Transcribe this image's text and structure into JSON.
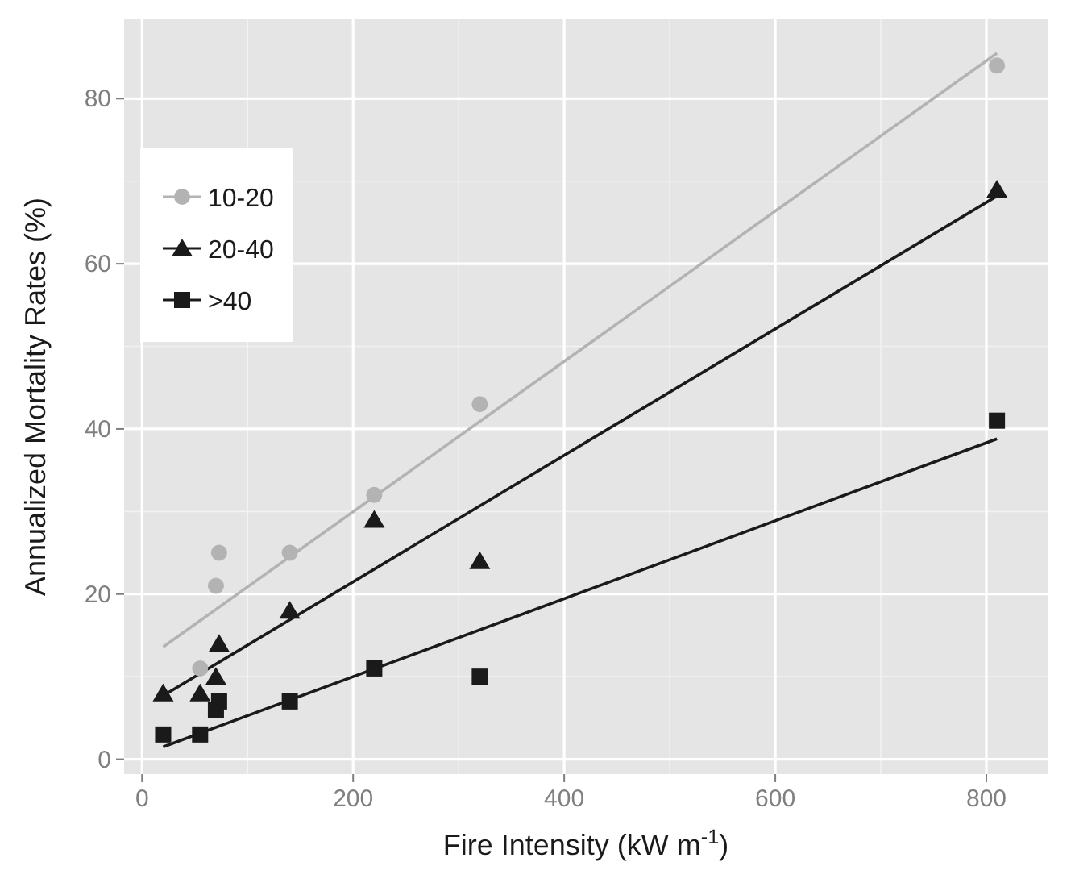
{
  "chart_data": {
    "type": "scatter",
    "xlabel": "Fire Intensity (kW m$^{-1}$)",
    "ylabel": "Annualized Mortality Rates (%)",
    "xlim": [
      -17,
      858
    ],
    "ylim": [
      -1.8,
      89.6
    ],
    "xticks": [
      0,
      200,
      400,
      600,
      800
    ],
    "yticks": [
      0,
      20,
      40,
      60,
      80
    ],
    "grid": true,
    "legend": "top left",
    "series": [
      {
        "name": "10-20",
        "color": "#b3b3b3",
        "marker": "circle",
        "x": [
          55,
          70,
          73,
          140,
          220,
          320,
          810
        ],
        "values": [
          11,
          21,
          25,
          25,
          32,
          43,
          84
        ]
      },
      {
        "name": "20-40",
        "color": "#1a1a1a",
        "marker": "triangle",
        "x": [
          20,
          55,
          70,
          73,
          140,
          220,
          320,
          810
        ],
        "values": [
          8,
          8,
          10,
          14,
          18,
          29,
          24,
          69
        ]
      },
      {
        "name": ">40",
        "color": "#1a1a1a",
        "marker": "square",
        "x": [
          20,
          55,
          70,
          73,
          140,
          220,
          320,
          810
        ],
        "values": [
          3,
          3,
          6,
          7,
          7,
          11,
          10,
          41
        ]
      },
      {
        "type": "line",
        "color": "#b3b3b3",
        "x": [
          20,
          810
        ],
        "values": [
          13.6,
          85.5
        ]
      },
      {
        "type": "line",
        "color": "#1a1a1a",
        "x": [
          20,
          810
        ],
        "values": [
          7.7,
          68.2
        ]
      },
      {
        "type": "line",
        "color": "#1a1a1a",
        "x": [
          20,
          810
        ],
        "values": [
          1.5,
          38.8
        ]
      }
    ]
  }
}
